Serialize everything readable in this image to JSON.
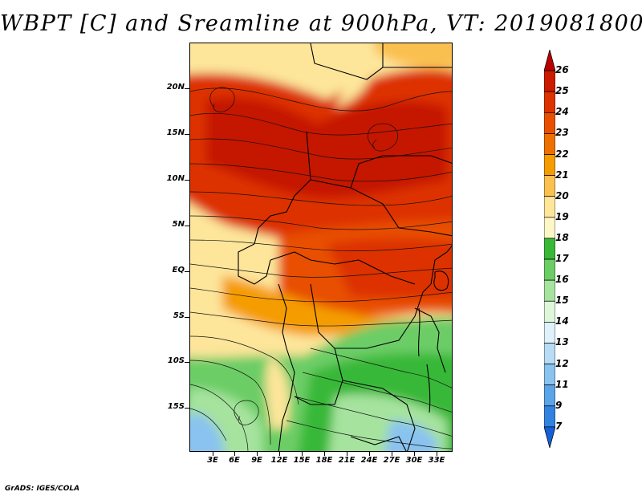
{
  "title": "WBPT [C] and Sreamline at 900hPa, VT: 2019081800",
  "footer": "GrADS: IGES/COLA",
  "latitude_labels": [
    "20N",
    "15N",
    "10N",
    "5N",
    "EQ",
    "5S",
    "10S",
    "15S"
  ],
  "longitude_labels": [
    "3E",
    "6E",
    "9E",
    "12E",
    "15E",
    "18E",
    "21E",
    "24E",
    "27E",
    "30E",
    "33E"
  ],
  "colorbar": {
    "labels": [
      "26",
      "25",
      "24",
      "23",
      "22",
      "21",
      "20",
      "19",
      "18",
      "17",
      "16",
      "15",
      "14",
      "13",
      "12",
      "11",
      "9",
      "7"
    ],
    "colors": [
      "#b80000",
      "#cc1a00",
      "#dd3300",
      "#e85000",
      "#ee7000",
      "#f59c00",
      "#fac050",
      "#fde59a",
      "#fdf7c8",
      "#39b837",
      "#6ccd66",
      "#a6e39e",
      "#dff6da",
      "#dff1fb",
      "#b8dcf5",
      "#8ac3ef",
      "#5aa4e8",
      "#3282e0",
      "#1460d6"
    ]
  }
}
